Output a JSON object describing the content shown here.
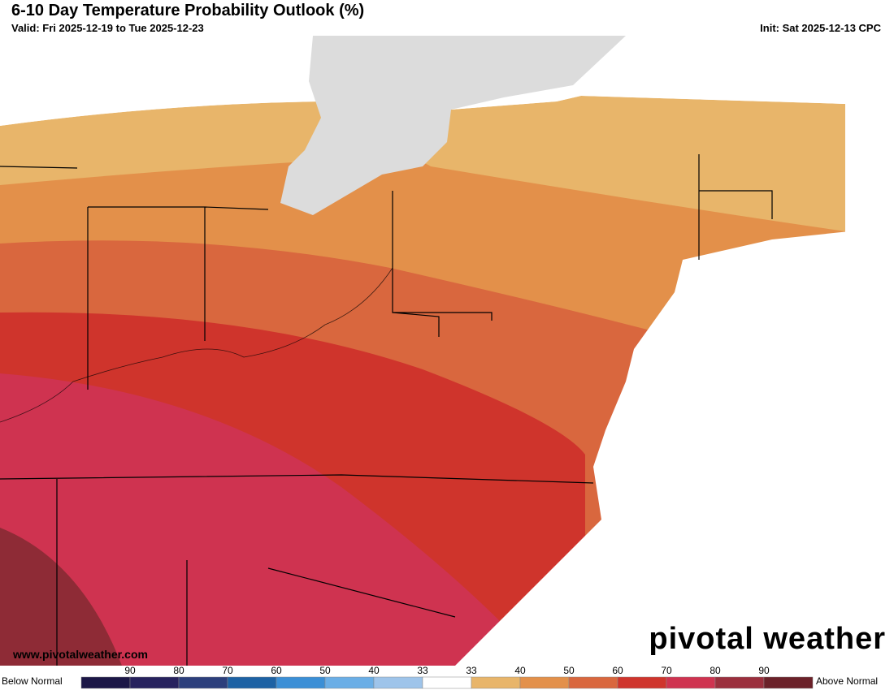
{
  "header": {
    "title": "6-10 Day Temperature Probability Outlook (%)",
    "valid": "Valid: Fri 2025-12-19 to Tue 2025-12-23",
    "init": "Init: Sat 2025-12-13 CPC"
  },
  "footer": {
    "website": "www.pivotalweather.com",
    "logo": "pivotal weather"
  },
  "legend": {
    "below_label": "Below Normal",
    "above_label": "Above Normal",
    "ticks": [
      "90",
      "80",
      "70",
      "60",
      "50",
      "40",
      "33",
      "33",
      "40",
      "50",
      "60",
      "70",
      "80",
      "90"
    ],
    "colors": [
      "#1c1747",
      "#27225e",
      "#2c3f7c",
      "#1d62a4",
      "#3b8fd6",
      "#6aaee6",
      "#9ec4ea",
      "#ffffff",
      "#e8b56a",
      "#e3904a",
      "#d9673e",
      "#cf342c",
      "#cf3350",
      "#9b2f3d",
      "#6b2129"
    ]
  }
}
